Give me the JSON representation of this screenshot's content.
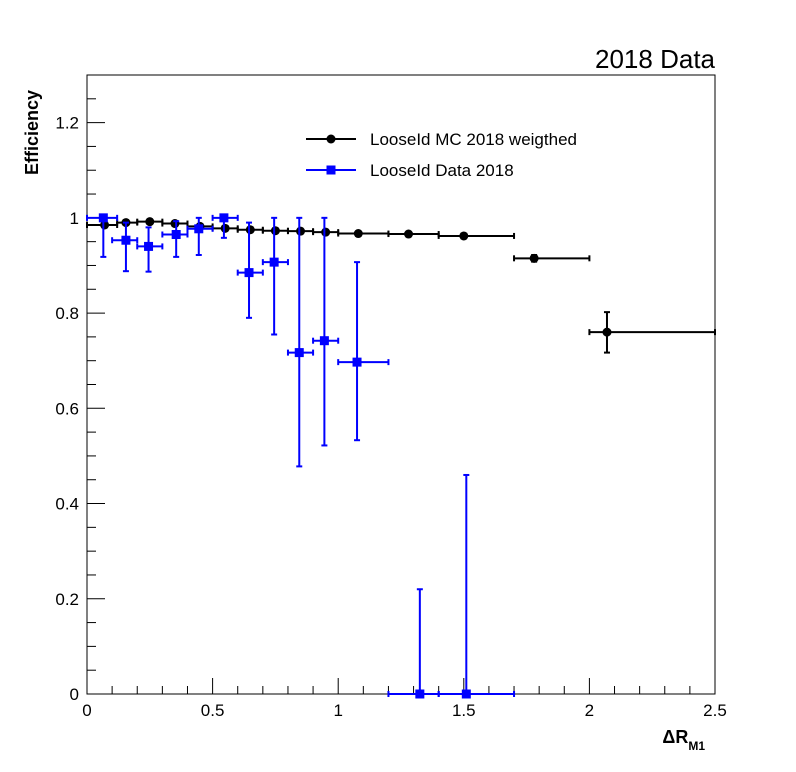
{
  "chart_data": {
    "type": "scatter",
    "title": "2018 Data",
    "xlabel": "ΔR",
    "xlabel_sub": "M1",
    "ylabel": "Efficiency",
    "xlim": [
      0,
      2.5
    ],
    "ylim": [
      0,
      1.3
    ],
    "x_ticks": [
      {
        "value": 0,
        "label": "0"
      },
      {
        "value": 0.5,
        "label": "0.5"
      },
      {
        "value": 1,
        "label": "1"
      },
      {
        "value": 1.5,
        "label": "1.5"
      },
      {
        "value": 2,
        "label": "2"
      },
      {
        "value": 2.5,
        "label": "2.5"
      }
    ],
    "y_ticks": [
      {
        "value": 0,
        "label": "0"
      },
      {
        "value": 0.2,
        "label": "0.2"
      },
      {
        "value": 0.4,
        "label": "0.4"
      },
      {
        "value": 0.6,
        "label": "0.6"
      },
      {
        "value": 0.8,
        "label": "0.8"
      },
      {
        "value": 1,
        "label": "1"
      },
      {
        "value": 1.2,
        "label": "1.2"
      }
    ],
    "grid": false,
    "legend_position": "top-center",
    "series": [
      {
        "name": "LooseId MC 2018 weigthed",
        "color": "#000000",
        "marker": "circle",
        "points": [
          {
            "x": 0.07,
            "xlo": 0.0,
            "xhi": 0.12,
            "y": 0.985,
            "ylo": 0.98,
            "yhi": 0.99
          },
          {
            "x": 0.155,
            "xlo": 0.12,
            "xhi": 0.2,
            "y": 0.99,
            "ylo": 0.985,
            "yhi": 0.995
          },
          {
            "x": 0.25,
            "xlo": 0.2,
            "xhi": 0.3,
            "y": 0.992,
            "ylo": 0.987,
            "yhi": 0.997
          },
          {
            "x": 0.35,
            "xlo": 0.3,
            "xhi": 0.4,
            "y": 0.988,
            "ylo": 0.983,
            "yhi": 0.993
          },
          {
            "x": 0.45,
            "xlo": 0.4,
            "xhi": 0.5,
            "y": 0.982,
            "ylo": 0.977,
            "yhi": 0.987
          },
          {
            "x": 0.55,
            "xlo": 0.5,
            "xhi": 0.6,
            "y": 0.978,
            "ylo": 0.973,
            "yhi": 0.983
          },
          {
            "x": 0.65,
            "xlo": 0.6,
            "xhi": 0.7,
            "y": 0.975,
            "ylo": 0.97,
            "yhi": 0.98
          },
          {
            "x": 0.75,
            "xlo": 0.7,
            "xhi": 0.8,
            "y": 0.973,
            "ylo": 0.968,
            "yhi": 0.978
          },
          {
            "x": 0.85,
            "xlo": 0.8,
            "xhi": 0.9,
            "y": 0.972,
            "ylo": 0.967,
            "yhi": 0.977
          },
          {
            "x": 0.95,
            "xlo": 0.9,
            "xhi": 1.0,
            "y": 0.97,
            "ylo": 0.965,
            "yhi": 0.975
          },
          {
            "x": 1.08,
            "xlo": 1.0,
            "xhi": 1.2,
            "y": 0.967,
            "ylo": 0.963,
            "yhi": 0.971
          },
          {
            "x": 1.28,
            "xlo": 1.2,
            "xhi": 1.4,
            "y": 0.966,
            "ylo": 0.962,
            "yhi": 0.97
          },
          {
            "x": 1.5,
            "xlo": 1.4,
            "xhi": 1.7,
            "y": 0.962,
            "ylo": 0.958,
            "yhi": 0.966
          },
          {
            "x": 1.78,
            "xlo": 1.7,
            "xhi": 2.0,
            "y": 0.915,
            "ylo": 0.908,
            "yhi": 0.922
          },
          {
            "x": 2.07,
            "xlo": 2.0,
            "xhi": 2.5,
            "y": 0.76,
            "ylo": 0.717,
            "yhi": 0.802
          }
        ]
      },
      {
        "name": "LooseId Data 2018",
        "color": "#0000ff",
        "marker": "square",
        "points": [
          {
            "x": 0.065,
            "xlo": 0.0,
            "xhi": 0.12,
            "y": 1.0,
            "ylo": 0.918,
            "yhi": 1.0
          },
          {
            "x": 0.155,
            "xlo": 0.1,
            "xhi": 0.2,
            "y": 0.953,
            "ylo": 0.888,
            "yhi": 0.99
          },
          {
            "x": 0.245,
            "xlo": 0.2,
            "xhi": 0.3,
            "y": 0.94,
            "ylo": 0.887,
            "yhi": 0.98
          },
          {
            "x": 0.355,
            "xlo": 0.3,
            "xhi": 0.4,
            "y": 0.965,
            "ylo": 0.918,
            "yhi": 0.993
          },
          {
            "x": 0.445,
            "xlo": 0.4,
            "xhi": 0.5,
            "y": 0.977,
            "ylo": 0.922,
            "yhi": 1.0
          },
          {
            "x": 0.545,
            "xlo": 0.5,
            "xhi": 0.6,
            "y": 1.0,
            "ylo": 0.958,
            "yhi": 1.0
          },
          {
            "x": 0.645,
            "xlo": 0.6,
            "xhi": 0.7,
            "y": 0.885,
            "ylo": 0.79,
            "yhi": 0.99
          },
          {
            "x": 0.745,
            "xlo": 0.7,
            "xhi": 0.8,
            "y": 0.907,
            "ylo": 0.755,
            "yhi": 1.0
          },
          {
            "x": 0.845,
            "xlo": 0.8,
            "xhi": 0.9,
            "y": 0.717,
            "ylo": 0.478,
            "yhi": 1.0
          },
          {
            "x": 0.945,
            "xlo": 0.9,
            "xhi": 1.0,
            "y": 0.742,
            "ylo": 0.522,
            "yhi": 1.0
          },
          {
            "x": 1.075,
            "xlo": 1.0,
            "xhi": 1.2,
            "y": 0.697,
            "ylo": 0.533,
            "yhi": 0.907
          },
          {
            "x": 1.325,
            "xlo": 1.2,
            "xhi": 1.4,
            "y": 0.0,
            "ylo": 0.0,
            "yhi": 0.22
          },
          {
            "x": 1.51,
            "xlo": 1.4,
            "xhi": 1.7,
            "y": 0.0,
            "ylo": 0.0,
            "yhi": 0.46
          }
        ]
      }
    ]
  }
}
